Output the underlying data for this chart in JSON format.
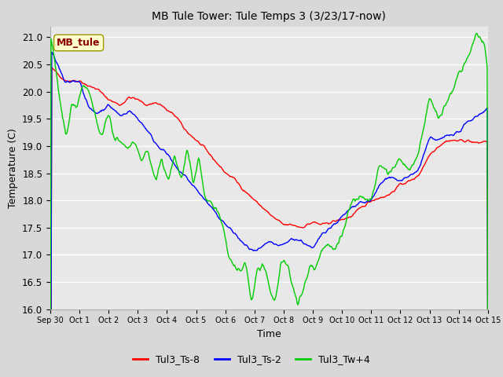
{
  "title": "MB Tule Tower: Tule Temps 3 (3/23/17-now)",
  "xlabel": "Time",
  "ylabel": "Temperature (C)",
  "ylim": [
    16.0,
    21.2
  ],
  "yticks": [
    16.0,
    16.5,
    17.0,
    17.5,
    18.0,
    18.5,
    19.0,
    19.5,
    20.0,
    20.5,
    21.0
  ],
  "plot_bg_color": "#e8e8e8",
  "fig_bg_color": "#d8d8d8",
  "grid_color": "#ffffff",
  "line_colors": {
    "Tul3_Ts-8": "#ff0000",
    "Tul3_Ts-2": "#0000ff",
    "Tul3_Tw+4": "#00cc00"
  },
  "legend_label": "MB_tule",
  "x_tick_labels": [
    "Sep 30",
    "Oct 1",
    "Oct 2",
    "Oct 3",
    "Oct 4",
    "Oct 5",
    "Oct 6",
    "Oct 7",
    "Oct 8",
    "Oct 9",
    "Oct 10",
    "Oct 11",
    "Oct 12",
    "Oct 13",
    "Oct 14",
    "Oct 15"
  ],
  "series_names": [
    "Tul3_Ts-8",
    "Tul3_Ts-2",
    "Tul3_Tw+4"
  ],
  "red_kp_x": [
    0,
    0.2,
    0.5,
    1.0,
    1.3,
    1.6,
    2.0,
    2.4,
    2.7,
    3.0,
    3.3,
    3.6,
    3.8,
    4.0,
    4.3,
    4.6,
    5.0,
    5.3,
    5.6,
    6.0,
    6.3,
    6.6,
    7.0,
    7.3,
    7.6,
    8.0,
    8.3,
    8.6,
    9.0,
    9.3,
    9.6,
    10.0,
    10.3,
    10.6,
    11.0,
    11.3,
    11.6,
    12.0,
    12.3,
    12.6,
    13.0,
    13.3,
    13.6,
    14.0,
    14.3,
    14.6,
    15.0
  ],
  "red_kp_y": [
    20.45,
    20.35,
    20.2,
    20.2,
    20.1,
    20.05,
    19.85,
    19.75,
    19.9,
    19.85,
    19.75,
    19.8,
    19.75,
    19.65,
    19.55,
    19.3,
    19.1,
    18.95,
    18.75,
    18.5,
    18.4,
    18.2,
    18.0,
    17.85,
    17.7,
    17.55,
    17.55,
    17.5,
    17.6,
    17.55,
    17.6,
    17.65,
    17.7,
    17.85,
    18.0,
    18.05,
    18.1,
    18.3,
    18.35,
    18.45,
    18.85,
    19.0,
    19.1,
    19.1,
    19.1,
    19.05,
    19.1
  ],
  "blue_kp_x": [
    0,
    0.2,
    0.5,
    0.8,
    1.0,
    1.3,
    1.6,
    2.0,
    2.4,
    2.7,
    3.0,
    3.3,
    3.6,
    4.0,
    4.3,
    4.6,
    5.0,
    5.3,
    5.6,
    6.0,
    6.3,
    6.6,
    7.0,
    7.3,
    7.5,
    7.8,
    8.0,
    8.3,
    8.6,
    9.0,
    9.3,
    9.6,
    10.0,
    10.3,
    10.6,
    11.0,
    11.3,
    11.6,
    12.0,
    12.3,
    12.6,
    13.0,
    13.3,
    13.6,
    14.0,
    14.3,
    14.6,
    15.0
  ],
  "blue_kp_y": [
    20.75,
    20.55,
    20.15,
    20.2,
    20.2,
    19.7,
    19.6,
    19.75,
    19.55,
    19.65,
    19.5,
    19.3,
    19.05,
    18.85,
    18.6,
    18.45,
    18.2,
    18.0,
    17.8,
    17.55,
    17.4,
    17.2,
    17.05,
    17.15,
    17.25,
    17.15,
    17.2,
    17.3,
    17.25,
    17.1,
    17.4,
    17.5,
    17.7,
    17.85,
    17.95,
    18.0,
    18.3,
    18.45,
    18.35,
    18.45,
    18.55,
    19.15,
    19.1,
    19.2,
    19.25,
    19.45,
    19.55,
    19.7
  ],
  "green_kp_x": [
    0,
    0.15,
    0.35,
    0.55,
    0.75,
    0.9,
    1.1,
    1.3,
    1.55,
    1.75,
    2.0,
    2.2,
    2.45,
    2.7,
    2.9,
    3.1,
    3.35,
    3.6,
    3.8,
    4.05,
    4.25,
    4.5,
    4.7,
    4.9,
    5.1,
    5.3,
    5.5,
    5.7,
    5.9,
    6.1,
    6.3,
    6.5,
    6.7,
    6.9,
    7.1,
    7.3,
    7.5,
    7.7,
    7.9,
    8.1,
    8.3,
    8.5,
    8.7,
    8.9,
    9.1,
    9.3,
    9.5,
    9.7,
    10.0,
    10.3,
    10.6,
    11.0,
    11.3,
    11.6,
    12.0,
    12.3,
    12.6,
    13.0,
    13.3,
    13.6,
    14.0,
    14.3,
    14.6,
    14.9,
    15.0
  ],
  "green_kp_y": [
    21.05,
    20.6,
    19.75,
    19.15,
    19.8,
    19.65,
    20.15,
    20.05,
    19.55,
    19.15,
    19.6,
    19.15,
    19.05,
    18.95,
    19.1,
    18.75,
    18.9,
    18.35,
    18.8,
    18.35,
    18.85,
    18.35,
    18.95,
    18.3,
    18.8,
    18.0,
    17.95,
    17.85,
    17.55,
    17.0,
    16.75,
    16.7,
    16.85,
    16.1,
    16.75,
    16.8,
    16.4,
    16.1,
    16.85,
    16.85,
    16.45,
    16.1,
    16.4,
    16.8,
    16.75,
    17.1,
    17.2,
    17.1,
    17.35,
    17.95,
    18.05,
    18.0,
    18.65,
    18.5,
    18.75,
    18.55,
    18.8,
    19.9,
    19.5,
    19.8,
    20.3,
    20.6,
    21.1,
    20.85,
    20.3
  ]
}
